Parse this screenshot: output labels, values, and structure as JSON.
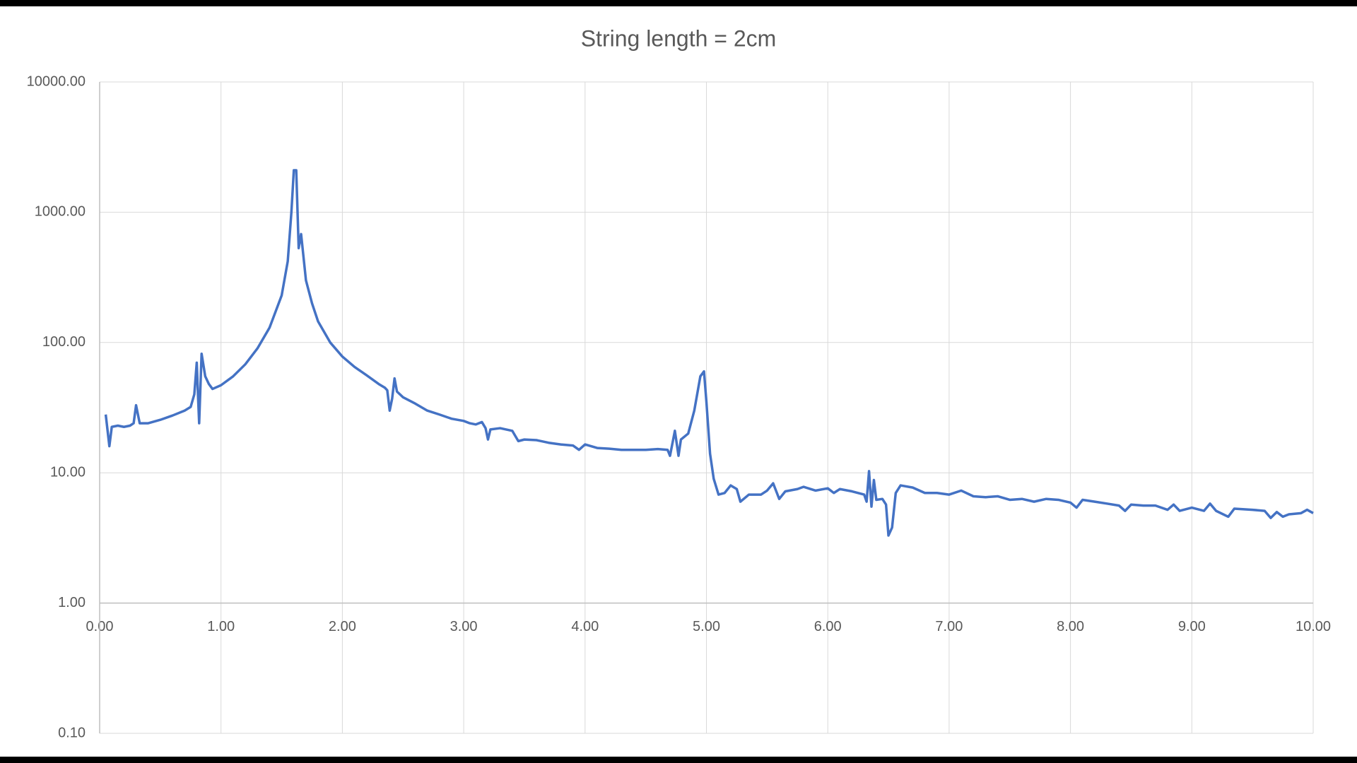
{
  "chart_data": {
    "type": "line",
    "title": "String length = 2cm",
    "x": [
      0.05,
      0.08,
      0.1,
      0.15,
      0.2,
      0.25,
      0.28,
      0.3,
      0.33,
      0.4,
      0.5,
      0.6,
      0.7,
      0.75,
      0.78,
      0.8,
      0.81,
      0.82,
      0.84,
      0.87,
      0.9,
      0.93,
      1.0,
      1.1,
      1.2,
      1.3,
      1.4,
      1.5,
      1.55,
      1.58,
      1.6,
      1.62,
      1.64,
      1.66,
      1.7,
      1.75,
      1.8,
      1.9,
      2.0,
      2.1,
      2.2,
      2.3,
      2.35,
      2.37,
      2.39,
      2.41,
      2.43,
      2.45,
      2.5,
      2.6,
      2.7,
      2.8,
      2.9,
      3.0,
      3.05,
      3.1,
      3.15,
      3.18,
      3.2,
      3.22,
      3.3,
      3.4,
      3.45,
      3.5,
      3.6,
      3.7,
      3.8,
      3.9,
      3.95,
      4.0,
      4.1,
      4.2,
      4.3,
      4.4,
      4.5,
      4.6,
      4.68,
      4.7,
      4.74,
      4.77,
      4.79,
      4.85,
      4.9,
      4.95,
      4.98,
      5.0,
      5.03,
      5.06,
      5.1,
      5.15,
      5.2,
      5.25,
      5.28,
      5.35,
      5.45,
      5.5,
      5.55,
      5.6,
      5.65,
      5.75,
      5.8,
      5.9,
      6.0,
      6.05,
      6.1,
      6.2,
      6.3,
      6.32,
      6.34,
      6.36,
      6.38,
      6.4,
      6.45,
      6.48,
      6.5,
      6.53,
      6.56,
      6.6,
      6.7,
      6.8,
      6.9,
      7.0,
      7.1,
      7.2,
      7.3,
      7.4,
      7.5,
      7.6,
      7.7,
      7.8,
      7.9,
      8.0,
      8.05,
      8.1,
      8.2,
      8.3,
      8.4,
      8.45,
      8.5,
      8.6,
      8.7,
      8.8,
      8.85,
      8.9,
      9.0,
      9.1,
      9.15,
      9.2,
      9.3,
      9.35,
      9.5,
      9.6,
      9.65,
      9.7,
      9.75,
      9.8,
      9.9,
      9.95,
      10.0
    ],
    "values": [
      28,
      16,
      22.5,
      23,
      22.5,
      23,
      24,
      33,
      24,
      24,
      25.5,
      27.5,
      30,
      32,
      40,
      70,
      40,
      24,
      82,
      55,
      48,
      44,
      47,
      55,
      68,
      90,
      130,
      230,
      420,
      1000,
      2100,
      2100,
      530,
      680,
      300,
      200,
      145,
      100,
      78,
      65,
      56,
      48,
      45,
      43,
      30,
      37,
      53,
      42,
      38,
      34,
      30,
      28,
      26,
      25,
      24,
      23.5,
      24.5,
      22,
      18,
      21.5,
      22,
      21,
      17.5,
      18,
      17.8,
      17,
      16.5,
      16.2,
      15,
      16.5,
      15.5,
      15.3,
      15,
      15,
      15,
      15.2,
      15,
      13.5,
      21,
      13.5,
      18,
      20,
      30,
      55,
      60,
      35,
      14,
      9,
      6.8,
      7,
      8,
      7.5,
      6,
      6.8,
      6.8,
      7.3,
      8.3,
      6.3,
      7.2,
      7.5,
      7.8,
      7.3,
      7.6,
      7,
      7.5,
      7.2,
      6.8,
      6,
      10.3,
      5.5,
      8.8,
      6.2,
      6.3,
      5.7,
      3.3,
      3.8,
      7,
      8,
      7.7,
      7,
      7,
      6.8,
      7.3,
      6.6,
      6.5,
      6.6,
      6.2,
      6.3,
      6.0,
      6.3,
      6.2,
      5.9,
      5.4,
      6.2,
      6.0,
      5.8,
      5.6,
      5.1,
      5.7,
      5.6,
      5.6,
      5.2,
      5.7,
      5.1,
      5.4,
      5.1,
      5.8,
      5.1,
      4.6,
      5.3,
      5.2,
      5.1,
      4.5,
      5.0,
      4.6,
      4.8,
      4.9,
      5.2,
      4.9
    ],
    "color": "#4472c4",
    "xlim": [
      0,
      10
    ],
    "xticks": [
      {
        "value": 0,
        "label": "0.00"
      },
      {
        "value": 1,
        "label": "1.00"
      },
      {
        "value": 2,
        "label": "2.00"
      },
      {
        "value": 3,
        "label": "3.00"
      },
      {
        "value": 4,
        "label": "4.00"
      },
      {
        "value": 5,
        "label": "5.00"
      },
      {
        "value": 6,
        "label": "6.00"
      },
      {
        "value": 7,
        "label": "7.00"
      },
      {
        "value": 8,
        "label": "8.00"
      },
      {
        "value": 9,
        "label": "9.00"
      },
      {
        "value": 10,
        "label": "10.00"
      }
    ],
    "ylim": [
      0.1,
      10000
    ],
    "y_scale": "log",
    "yticks": [
      {
        "value": 0.1,
        "label": "0.10"
      },
      {
        "value": 1,
        "label": "1.00"
      },
      {
        "value": 10,
        "label": "10.00"
      },
      {
        "value": 100,
        "label": "100.00"
      },
      {
        "value": 1000,
        "label": "1000.00"
      },
      {
        "value": 10000,
        "label": "10000.00"
      }
    ],
    "x_axis_crosses": 1,
    "grid": true
  }
}
